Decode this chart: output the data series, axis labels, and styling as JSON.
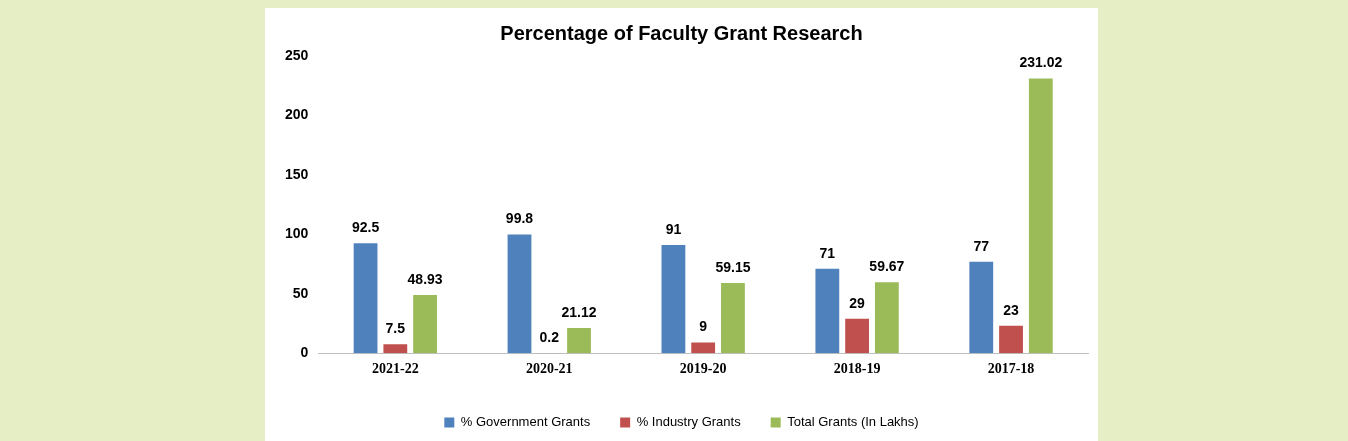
{
  "chart_data": {
    "type": "bar",
    "title": "Percentage of Faculty Grant Research",
    "categories": [
      "2021-22",
      "2020-21",
      "2019-20",
      "2018-19",
      "2017-18"
    ],
    "series": [
      {
        "name": "% Government Grants",
        "color": "#4f81bd",
        "values": [
          92.5,
          99.8,
          91,
          71,
          77
        ]
      },
      {
        "name": "% Industry Grants",
        "color": "#c0504d",
        "values": [
          7.5,
          0.2,
          9,
          29,
          23
        ]
      },
      {
        "name": "Total Grants (In Lakhs)",
        "color": "#9bbb59",
        "values": [
          48.93,
          21.12,
          59.15,
          59.67,
          231.02
        ]
      }
    ],
    "ylim": [
      0,
      250
    ],
    "yticks": [
      0,
      50,
      100,
      150,
      200,
      250
    ],
    "data_labels": true,
    "legend": "bottom"
  }
}
